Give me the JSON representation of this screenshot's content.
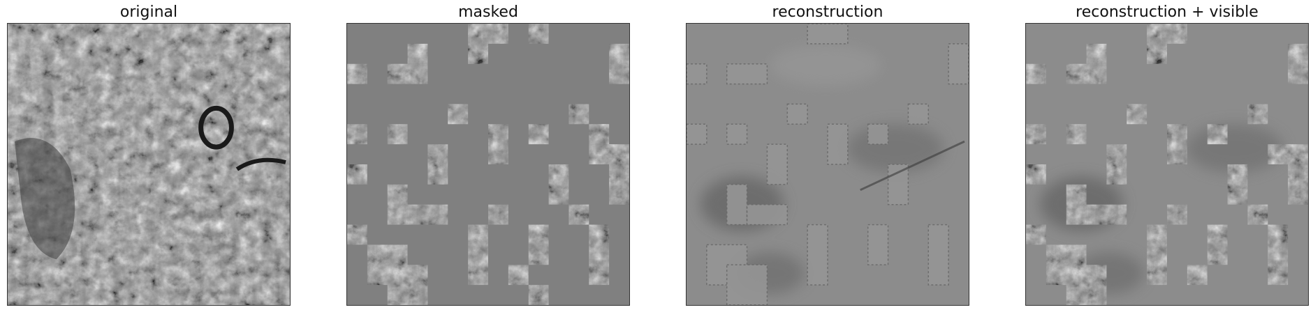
{
  "panels": [
    {
      "title": "original"
    },
    {
      "title": "masked"
    },
    {
      "title": "reconstruction"
    },
    {
      "title": "reconstruction + visible"
    }
  ]
}
